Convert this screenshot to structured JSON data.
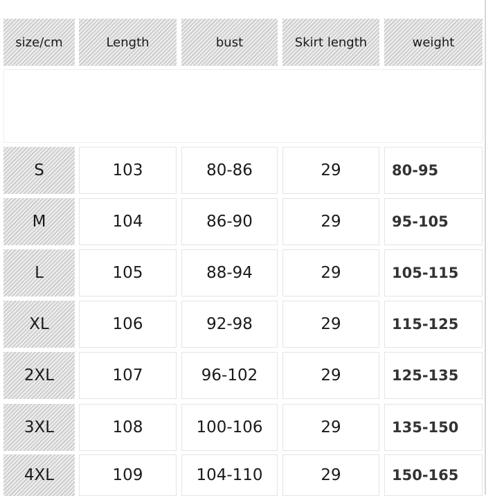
{
  "headers": [
    "size/cm",
    "Length",
    "bust",
    "Skirt length",
    "weight"
  ],
  "rows": [
    {
      "size": "S",
      "length": "103",
      "bust": "80-86",
      "skirt": "29",
      "weight": "80-95"
    },
    {
      "size": "M",
      "length": "104",
      "bust": "86-90",
      "skirt": "29",
      "weight": "95-105"
    },
    {
      "size": "L",
      "length": "105",
      "bust": "88-94",
      "skirt": "29",
      "weight": "105-115"
    },
    {
      "size": "XL",
      "length": "106",
      "bust": "92-98",
      "skirt": "29",
      "weight": "115-125"
    },
    {
      "size": "2XL",
      "length": "107",
      "bust": "96-102",
      "skirt": "29",
      "weight": "125-135"
    },
    {
      "size": "3XL",
      "length": "108",
      "bust": "100-106",
      "skirt": "29",
      "weight": "135-150"
    },
    {
      "size": "4XL",
      "length": "109",
      "bust": "104-110",
      "skirt": "29",
      "weight": "150-165"
    }
  ]
}
